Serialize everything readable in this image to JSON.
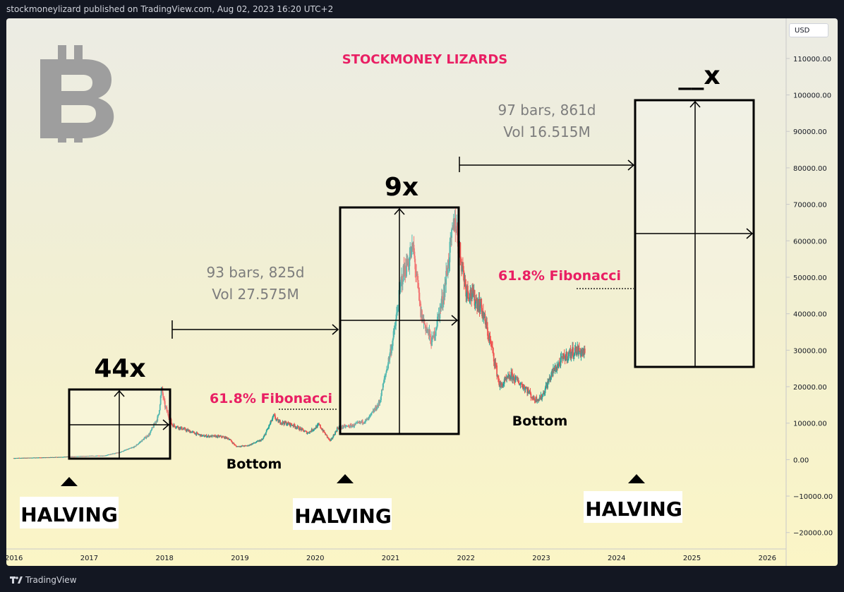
{
  "header": {
    "published_line": "stockmoneylizard published on TradingView.com, Aug 02, 2023 16:20 UTC+2"
  },
  "footer": {
    "brand": "TradingView"
  },
  "currency_button": "USD",
  "chart_data": {
    "type": "candlestick",
    "title": "STOCKMONEY LIZARDS",
    "y_axis": {
      "ticks": [
        110000,
        100000,
        90000,
        80000,
        70000,
        60000,
        50000,
        40000,
        30000,
        20000,
        10000,
        0,
        -10000,
        -20000
      ],
      "tick_labels": [
        "110000.00",
        "100000.00",
        "90000.00",
        "80000.00",
        "70000.00",
        "60000.00",
        "50000.00",
        "40000.00",
        "30000.00",
        "20000.00",
        "10000.00",
        "0.00",
        "−10000.00",
        "−20000.00"
      ],
      "range": [
        -24500,
        121000
      ]
    },
    "x_axis": {
      "tick_labels": [
        "2016",
        "2017",
        "2018",
        "2019",
        "2020",
        "2021",
        "2022",
        "2023",
        "2024",
        "2025",
        "2026"
      ],
      "range": [
        2015.9,
        2026.25
      ]
    },
    "price_series": [
      [
        2016.0,
        430
      ],
      [
        2016.5,
        650
      ],
      [
        2016.9,
        950
      ],
      [
        2017.2,
        1100
      ],
      [
        2017.4,
        2000
      ],
      [
        2017.6,
        3500
      ],
      [
        2017.8,
        7000
      ],
      [
        2017.92,
        12000
      ],
      [
        2017.96,
        19500
      ],
      [
        2018.0,
        15000
      ],
      [
        2018.1,
        9500
      ],
      [
        2018.3,
        8000
      ],
      [
        2018.5,
        6500
      ],
      [
        2018.75,
        6300
      ],
      [
        2018.85,
        5800
      ],
      [
        2018.95,
        3600
      ],
      [
        2019.1,
        3800
      ],
      [
        2019.3,
        5500
      ],
      [
        2019.45,
        12000
      ],
      [
        2019.5,
        10500
      ],
      [
        2019.7,
        9500
      ],
      [
        2019.9,
        7300
      ],
      [
        2020.05,
        9500
      ],
      [
        2020.2,
        5000
      ],
      [
        2020.3,
        8800
      ],
      [
        2020.5,
        9300
      ],
      [
        2020.7,
        11000
      ],
      [
        2020.85,
        15500
      ],
      [
        2020.95,
        25000
      ],
      [
        2021.05,
        35000
      ],
      [
        2021.15,
        50000
      ],
      [
        2021.3,
        58000
      ],
      [
        2021.4,
        40000
      ],
      [
        2021.55,
        32000
      ],
      [
        2021.7,
        45000
      ],
      [
        2021.85,
        66000
      ],
      [
        2022.0,
        47000
      ],
      [
        2022.2,
        42000
      ],
      [
        2022.35,
        30000
      ],
      [
        2022.45,
        20000
      ],
      [
        2022.6,
        23000
      ],
      [
        2022.8,
        19500
      ],
      [
        2022.9,
        16500
      ],
      [
        2023.0,
        17000
      ],
      [
        2023.15,
        24000
      ],
      [
        2023.3,
        28000
      ],
      [
        2023.45,
        30000
      ],
      [
        2023.58,
        29300
      ]
    ],
    "trend_up_color": "#26a69a",
    "trend_down_color": "#ef5350",
    "annotations": {
      "cycle1_multiple": "44x",
      "cycle2_multiple": "9x",
      "cycle3_multiple": "__x",
      "halving_label": "HALVING",
      "bottom_label": "Bottom",
      "fib_label": "61.8% Fibonacci",
      "bars_1_line1": "93 bars, 825d",
      "bars_1_line2": "Vol 27.575M",
      "bars_2_line1": "97 bars, 861d",
      "bars_2_line2": "Vol 16.515M"
    },
    "annotation_colors": {
      "title": "#e91e63",
      "fibonacci": "#e91e63",
      "bars_text": "#7d7d7d",
      "logo": "#9e9e9e"
    },
    "grid": false
  }
}
